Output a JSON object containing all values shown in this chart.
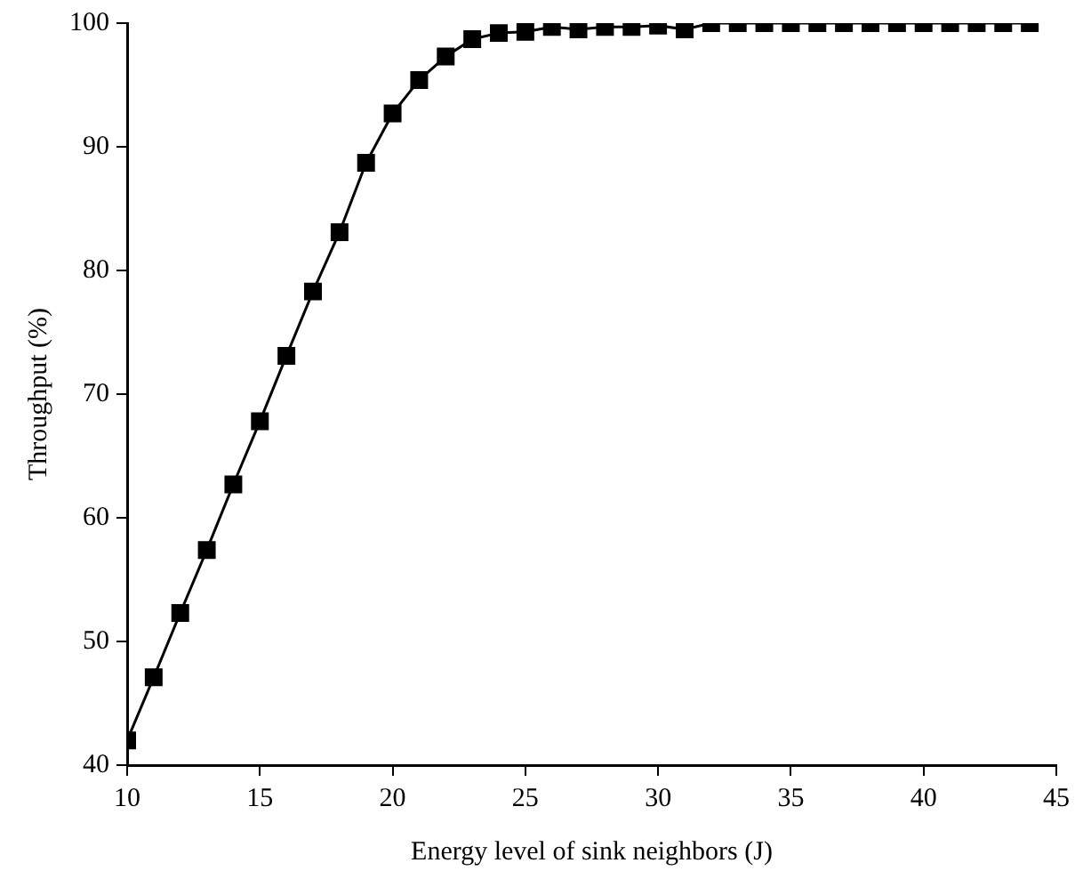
{
  "chart_data": {
    "type": "line",
    "xlabel": "Energy level of sink neighbors (J)",
    "ylabel": "Throughput (%)",
    "x": [
      10,
      11,
      12,
      13,
      14,
      15,
      16,
      17,
      18,
      19,
      20,
      21,
      22,
      23,
      24,
      25,
      26,
      27,
      28,
      29,
      30,
      31,
      32,
      33,
      34,
      35,
      36,
      37,
      38,
      39,
      40,
      41,
      42,
      43,
      44
    ],
    "series": [
      {
        "color": "#000000",
        "values": [
          42,
          47.1,
          52.3,
          57.4,
          62.7,
          67.8,
          73.1,
          78.3,
          83.1,
          88.7,
          92.7,
          95.4,
          97.3,
          98.7,
          99.2,
          99.3,
          99.7,
          99.5,
          99.7,
          99.7,
          99.8,
          99.5,
          100,
          100,
          100,
          100,
          100,
          100,
          100,
          100,
          100,
          100,
          100,
          100,
          100
        ]
      }
    ],
    "xlim": [
      10,
      45
    ],
    "xticks": [
      10,
      15,
      20,
      25,
      30,
      35,
      40,
      45
    ],
    "ylim": [
      40,
      100
    ],
    "yticks": [
      40,
      50,
      60,
      70,
      80,
      90,
      100
    ],
    "grid": false,
    "legend": false,
    "marker": "square",
    "line_style": "solid"
  }
}
